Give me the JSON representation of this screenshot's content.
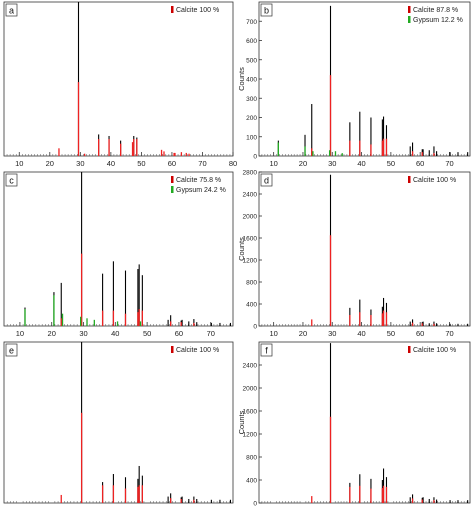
{
  "chart_data": [
    {
      "type": "bar",
      "panel_label": "a",
      "xlabel": "",
      "ylabel": "",
      "xlim": [
        5,
        80
      ],
      "ylim": [
        0,
        1000
      ],
      "x_ticks": [
        10,
        20,
        30,
        40,
        50,
        60,
        70,
        80
      ],
      "y_ticks": [],
      "legend": [
        {
          "name": "Calcite 100 %",
          "color": "#cc0000"
        }
      ],
      "legend_position": "top-right",
      "series": [
        {
          "name": "Calcite 100 %",
          "color": "#ee2222",
          "x": [
            23.0,
            29.4,
            31.4,
            36.0,
            39.4,
            43.2,
            47.1,
            47.5,
            48.5,
            56.6,
            57.4,
            60.7,
            61.0,
            63.1,
            64.7,
            65.6
          ],
          "y": [
            50,
            480,
            15,
            110,
            110,
            80,
            90,
            110,
            110,
            40,
            30,
            20,
            20,
            25,
            20,
            15
          ]
        },
        {
          "name": "",
          "color": "#000000",
          "x": [
            29.4,
            36.0,
            39.4,
            43.2,
            47.5,
            48.5
          ],
          "y": [
            1000,
            140,
            130,
            100,
            130,
            120
          ]
        }
      ]
    },
    {
      "type": "bar",
      "panel_label": "b",
      "xlabel": "",
      "ylabel": "Counts",
      "xlim": [
        5,
        77
      ],
      "ylim": [
        0,
        800
      ],
      "x_ticks": [
        10,
        20,
        30,
        40,
        50,
        60,
        70
      ],
      "y_ticks": [
        0,
        100,
        200,
        300,
        400,
        500,
        600,
        700
      ],
      "legend": [
        {
          "name": "Calcite 87.8 %",
          "color": "#cc0000"
        },
        {
          "name": "Gypsum 12.2 %",
          "color": "#22aa22"
        }
      ],
      "legend_position": "top-right",
      "series": [
        {
          "name": "Calcite 87.8 %",
          "color": "#ee2222",
          "x": [
            23.0,
            29.4,
            36.0,
            39.4,
            43.2,
            47.1,
            47.5,
            48.5,
            57.4,
            60.7,
            64.7
          ],
          "y": [
            40,
            420,
            80,
            80,
            60,
            80,
            90,
            90,
            25,
            20,
            15
          ]
        },
        {
          "name": "Gypsum 12.2 %",
          "color": "#22aa22",
          "x": [
            11.6,
            20.7,
            23.4,
            29.1,
            31.1,
            33.4
          ],
          "y": [
            70,
            50,
            25,
            30,
            25,
            15
          ]
        },
        {
          "name": "",
          "color": "#000000",
          "x": [
            11.6,
            20.7,
            23.0,
            29.4,
            36.0,
            39.4,
            43.2,
            47.1,
            47.5,
            48.5,
            56.6,
            57.4,
            60.7,
            61.0,
            63.1,
            64.7,
            65.6,
            70.2,
            72.9,
            76.2
          ],
          "y": [
            80,
            110,
            270,
            780,
            175,
            230,
            200,
            190,
            205,
            160,
            50,
            70,
            35,
            35,
            30,
            50,
            25,
            20,
            20,
            20
          ]
        }
      ]
    },
    {
      "type": "bar",
      "panel_label": "c",
      "xlabel": "",
      "ylabel": "",
      "xlim": [
        5,
        77
      ],
      "ylim": [
        0,
        1000
      ],
      "x_ticks": [
        10,
        20,
        30,
        40,
        50,
        60,
        70
      ],
      "y_ticks": [],
      "legend": [
        {
          "name": "Calcite 75.8 %",
          "color": "#cc0000"
        },
        {
          "name": "Gypsum 24.2 %",
          "color": "#22aa22"
        }
      ],
      "legend_position": "top-right",
      "series": [
        {
          "name": "Calcite 75.8 %",
          "color": "#ee2222",
          "x": [
            23.0,
            29.4,
            36.0,
            39.4,
            43.2,
            47.1,
            47.5,
            48.5,
            57.4,
            60.7,
            64.7
          ],
          "y": [
            50,
            470,
            100,
            100,
            80,
            90,
            110,
            100,
            30,
            25,
            20
          ]
        },
        {
          "name": "Gypsum 24.2 %",
          "color": "#22aa22",
          "x": [
            11.6,
            20.7,
            23.4,
            29.1,
            31.1,
            33.4,
            40.7,
            47.9
          ],
          "y": [
            110,
            200,
            80,
            60,
            50,
            40,
            30,
            30
          ]
        },
        {
          "name": "",
          "color": "#000000",
          "x": [
            11.6,
            20.7,
            23.0,
            29.4,
            36.0,
            39.4,
            43.2,
            47.1,
            47.5,
            48.5,
            56.6,
            57.4,
            60.7,
            61.0,
            63.1,
            64.7,
            65.6,
            70.2,
            72.9,
            76.2
          ],
          "y": [
            120,
            220,
            280,
            1000,
            340,
            420,
            360,
            370,
            400,
            330,
            40,
            70,
            35,
            40,
            30,
            45,
            25,
            20,
            20,
            20
          ]
        }
      ]
    },
    {
      "type": "bar",
      "panel_label": "d",
      "xlabel": "",
      "ylabel": "Counts",
      "xlim": [
        5,
        77
      ],
      "ylim": [
        0,
        2800
      ],
      "x_ticks": [
        10,
        20,
        30,
        40,
        50,
        60,
        70
      ],
      "y_ticks": [
        0,
        400,
        800,
        1200,
        1600,
        2000,
        2400,
        2800
      ],
      "legend": [
        {
          "name": "Calcite 100 %",
          "color": "#cc0000"
        }
      ],
      "legend_position": "top-right",
      "series": [
        {
          "name": "Calcite 100 %",
          "color": "#ee2222",
          "x": [
            23.0,
            29.4,
            36.0,
            39.4,
            43.2,
            47.1,
            47.5,
            48.5,
            57.4,
            60.7,
            64.7
          ],
          "y": [
            120,
            1650,
            200,
            250,
            200,
            230,
            280,
            250,
            60,
            50,
            40
          ]
        },
        {
          "name": "",
          "color": "#000000",
          "x": [
            29.4,
            36.0,
            39.4,
            43.2,
            47.1,
            47.5,
            48.5,
            56.6,
            57.4,
            60.7,
            61.0,
            63.1,
            64.7,
            65.6,
            70.2,
            72.9,
            76.2
          ],
          "y": [
            2750,
            330,
            480,
            300,
            350,
            510,
            420,
            80,
            120,
            70,
            80,
            50,
            80,
            50,
            40,
            40,
            40
          ]
        }
      ]
    },
    {
      "type": "bar",
      "panel_label": "e",
      "xlabel": "",
      "ylabel": "",
      "xlim": [
        5,
        77
      ],
      "ylim": [
        0,
        1000
      ],
      "x_ticks": [],
      "y_ticks": [],
      "legend": [
        {
          "name": "Calcite 100 %",
          "color": "#cc0000"
        }
      ],
      "legend_position": "top-right",
      "series": [
        {
          "name": "Calcite 100 %",
          "color": "#ee2222",
          "x": [
            23.0,
            29.4,
            36.0,
            39.4,
            43.2,
            47.1,
            47.5,
            48.5,
            57.4,
            60.7,
            64.7
          ],
          "y": [
            50,
            560,
            110,
            110,
            90,
            100,
            110,
            110,
            30,
            25,
            20
          ]
        },
        {
          "name": "",
          "color": "#000000",
          "x": [
            29.4,
            36.0,
            39.4,
            43.2,
            47.1,
            47.5,
            48.5,
            56.6,
            57.4,
            60.7,
            61.0,
            63.1,
            64.7,
            65.6,
            70.2,
            72.9,
            76.2
          ],
          "y": [
            1000,
            130,
            180,
            160,
            150,
            230,
            170,
            40,
            60,
            35,
            40,
            25,
            40,
            25,
            20,
            20,
            20
          ]
        }
      ]
    },
    {
      "type": "bar",
      "panel_label": "f",
      "xlabel": "",
      "ylabel": "Counts",
      "xlim": [
        5,
        77
      ],
      "ylim": [
        0,
        2800
      ],
      "x_ticks": [],
      "y_ticks": [
        0,
        400,
        800,
        1200,
        1600,
        2000,
        2400
      ],
      "legend": [
        {
          "name": "Calcite 100 %",
          "color": "#cc0000"
        }
      ],
      "legend_position": "top-right",
      "series": [
        {
          "name": "Calcite 100 %",
          "color": "#ee2222",
          "x": [
            23.0,
            29.4,
            36.0,
            39.4,
            43.2,
            47.1,
            47.5,
            48.5,
            57.4,
            60.7,
            64.7
          ],
          "y": [
            120,
            1500,
            280,
            300,
            250,
            260,
            300,
            280,
            80,
            60,
            50
          ]
        },
        {
          "name": "",
          "color": "#000000",
          "x": [
            29.4,
            36.0,
            39.4,
            43.2,
            47.1,
            47.5,
            48.5,
            56.6,
            57.4,
            60.7,
            61.0,
            63.1,
            64.7,
            65.6,
            70.2,
            72.9,
            76.2
          ],
          "y": [
            2780,
            350,
            500,
            420,
            400,
            600,
            450,
            100,
            150,
            90,
            100,
            70,
            100,
            60,
            50,
            50,
            50
          ]
        }
      ]
    }
  ]
}
